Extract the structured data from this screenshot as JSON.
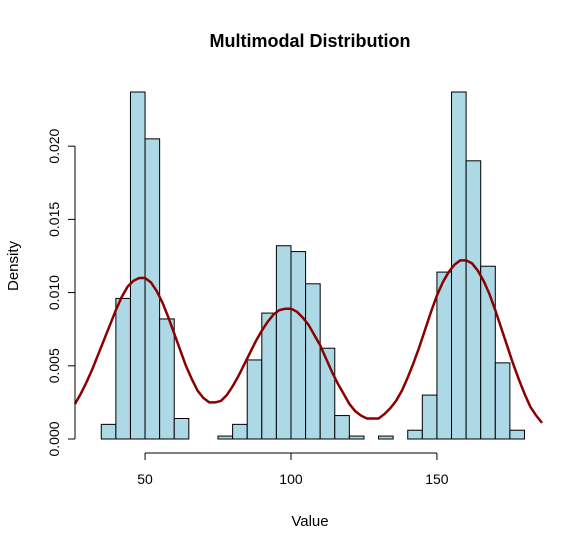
{
  "chart_data": {
    "type": "bar",
    "title": "Multimodal Distribution",
    "xlabel": "Value",
    "ylabel": "Density",
    "xlim": [
      26,
      186
    ],
    "ylim": [
      0,
      0.0237
    ],
    "x_ticks": [
      50,
      100,
      150
    ],
    "y_ticks": [
      0.0,
      0.005,
      0.01,
      0.015,
      0.02
    ],
    "y_tick_labels": [
      "0.000",
      "0.005",
      "0.010",
      "0.015",
      "0.020"
    ],
    "bin_width": 5,
    "bars": [
      {
        "start": 35,
        "end": 40,
        "density": 0.001
      },
      {
        "start": 40,
        "end": 45,
        "density": 0.0096
      },
      {
        "start": 45,
        "end": 50,
        "density": 0.0237
      },
      {
        "start": 50,
        "end": 55,
        "density": 0.0205
      },
      {
        "start": 55,
        "end": 60,
        "density": 0.0082
      },
      {
        "start": 60,
        "end": 65,
        "density": 0.0014
      },
      {
        "start": 75,
        "end": 80,
        "density": 0.0002
      },
      {
        "start": 80,
        "end": 85,
        "density": 0.001
      },
      {
        "start": 85,
        "end": 90,
        "density": 0.0054
      },
      {
        "start": 90,
        "end": 95,
        "density": 0.0086
      },
      {
        "start": 95,
        "end": 100,
        "density": 0.0132
      },
      {
        "start": 100,
        "end": 105,
        "density": 0.0128
      },
      {
        "start": 105,
        "end": 110,
        "density": 0.0106
      },
      {
        "start": 110,
        "end": 115,
        "density": 0.0062
      },
      {
        "start": 115,
        "end": 120,
        "density": 0.0016
      },
      {
        "start": 120,
        "end": 125,
        "density": 0.0002
      },
      {
        "start": 130,
        "end": 135,
        "density": 0.0002
      },
      {
        "start": 140,
        "end": 145,
        "density": 0.0006
      },
      {
        "start": 145,
        "end": 150,
        "density": 0.003
      },
      {
        "start": 150,
        "end": 155,
        "density": 0.0114
      },
      {
        "start": 155,
        "end": 160,
        "density": 0.0237
      },
      {
        "start": 160,
        "end": 165,
        "density": 0.019
      },
      {
        "start": 165,
        "end": 170,
        "density": 0.0118
      },
      {
        "start": 170,
        "end": 175,
        "density": 0.0052
      },
      {
        "start": 175,
        "end": 180,
        "density": 0.0006
      }
    ],
    "density_curve": {
      "x": [
        26,
        28,
        30,
        32,
        34,
        36,
        38,
        40,
        42,
        44,
        46,
        48,
        50,
        52,
        54,
        56,
        58,
        60,
        62,
        64,
        66,
        68,
        70,
        72,
        74,
        76,
        78,
        80,
        82,
        84,
        86,
        88,
        90,
        92,
        94,
        96,
        98,
        100,
        102,
        104,
        106,
        108,
        110,
        112,
        114,
        116,
        118,
        120,
        122,
        124,
        126,
        128,
        130,
        132,
        134,
        136,
        138,
        140,
        142,
        144,
        146,
        148,
        150,
        152,
        154,
        156,
        158,
        160,
        162,
        164,
        166,
        168,
        170,
        172,
        174,
        176,
        178,
        180,
        182,
        184,
        186
      ],
      "y": [
        0.0024,
        0.0031,
        0.0039,
        0.0048,
        0.0058,
        0.0068,
        0.0078,
        0.0088,
        0.0097,
        0.0104,
        0.0108,
        0.011,
        0.011,
        0.0107,
        0.0101,
        0.0093,
        0.0083,
        0.0072,
        0.0061,
        0.005,
        0.0041,
        0.0033,
        0.0028,
        0.0025,
        0.0025,
        0.0026,
        0.003,
        0.0036,
        0.0043,
        0.0051,
        0.0059,
        0.0067,
        0.0074,
        0.008,
        0.0085,
        0.0088,
        0.0089,
        0.0089,
        0.0087,
        0.0083,
        0.0078,
        0.0071,
        0.0064,
        0.0055,
        0.0046,
        0.0038,
        0.0031,
        0.0024,
        0.0019,
        0.0016,
        0.0014,
        0.0014,
        0.0014,
        0.0017,
        0.0021,
        0.0026,
        0.0033,
        0.0042,
        0.0052,
        0.0063,
        0.0075,
        0.0087,
        0.0098,
        0.0107,
        0.0114,
        0.0119,
        0.0122,
        0.0122,
        0.012,
        0.0115,
        0.0108,
        0.0099,
        0.0088,
        0.0076,
        0.0064,
        0.0052,
        0.0041,
        0.0031,
        0.0022,
        0.0016,
        0.0011
      ],
      "color": "#8b0000"
    },
    "bar_fill": "#add8e6",
    "bar_stroke": "#000000"
  }
}
